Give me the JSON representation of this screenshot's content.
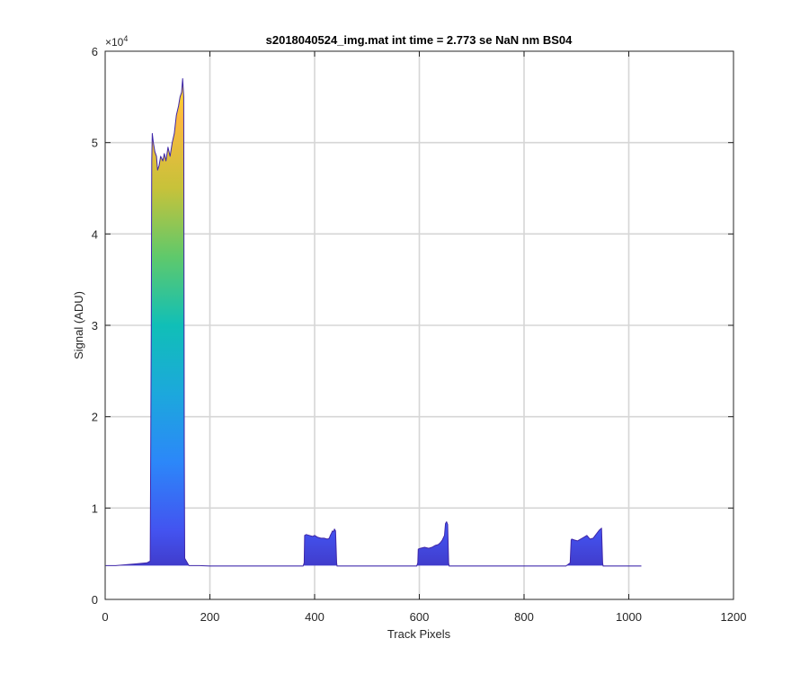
{
  "chart_data": {
    "type": "area",
    "title": "s2018040524_img.mat int time = 2.773 se  NaN nm BS04",
    "xlabel": "Track Pixels",
    "ylabel": "Signal (ADU)",
    "exponent_label": "×10",
    "exponent_power": "4",
    "xlim": [
      0,
      1200
    ],
    "ylim": [
      0,
      60000
    ],
    "grid": true,
    "x_ticks": [
      0,
      200,
      400,
      600,
      800,
      1000,
      1200
    ],
    "y_ticks": [
      0,
      10000,
      20000,
      30000,
      40000,
      50000,
      60000
    ],
    "x_tick_labels": [
      "0",
      "200",
      "400",
      "600",
      "800",
      "1000",
      "1200"
    ],
    "y_tick_labels": [
      "0",
      "1",
      "2",
      "3",
      "4",
      "5",
      "6"
    ],
    "colormap": [
      "#3e26a8",
      "#4353f0",
      "#2c87f9",
      "#1ca8dc",
      "#10bfb7",
      "#5fc96b",
      "#c7c23a",
      "#fbb83e",
      "#f9fb15"
    ],
    "baseline": 3700,
    "series": [
      {
        "x": [
          1,
          20,
          40,
          60,
          80,
          86,
          88,
          89,
          90,
          92,
          95,
          98,
          100,
          103,
          106,
          110,
          113,
          116,
          120,
          124,
          128,
          132,
          136,
          140,
          143,
          146,
          148,
          150,
          151,
          152,
          160,
          180,
          200,
          240,
          280,
          320,
          360,
          378,
          380,
          381,
          384,
          390,
          396,
          400,
          406,
          412,
          418,
          424,
          428,
          430,
          432,
          434,
          436,
          438,
          440,
          442,
          443,
          446,
          460,
          500,
          540,
          580,
          595,
          597,
          598,
          602,
          610,
          618,
          624,
          630,
          636,
          640,
          644,
          648,
          650,
          652,
          654,
          656,
          657,
          660,
          680,
          720,
          760,
          800,
          840,
          880,
          888,
          890,
          891,
          896,
          902,
          908,
          914,
          920,
          926,
          932,
          936,
          940,
          944,
          948,
          950,
          951,
          955,
          980,
          1000,
          1020,
          1024
        ],
        "values": [
          3700,
          3700,
          3800,
          3900,
          4000,
          4200,
          30000,
          48000,
          51000,
          50000,
          49000,
          48500,
          47000,
          47500,
          48500,
          48000,
          48800,
          48000,
          49500,
          48500,
          50000,
          51000,
          53000,
          54000,
          55000,
          55500,
          57000,
          55000,
          17500,
          4500,
          3700,
          3700,
          3650,
          3650,
          3650,
          3650,
          3650,
          3650,
          4000,
          7000,
          7100,
          7000,
          6900,
          7000,
          6800,
          6700,
          6700,
          6600,
          6700,
          7000,
          7200,
          7500,
          7400,
          7700,
          7500,
          4000,
          3650,
          3650,
          3650,
          3650,
          3650,
          3650,
          3650,
          4000,
          5500,
          5600,
          5700,
          5600,
          5700,
          5900,
          6000,
          6200,
          6500,
          7000,
          8300,
          8500,
          8200,
          4000,
          3650,
          3650,
          3650,
          3650,
          3650,
          3650,
          3650,
          3650,
          4000,
          6500,
          6600,
          6500,
          6400,
          6600,
          6800,
          7000,
          6600,
          6700,
          7000,
          7300,
          7600,
          7800,
          4000,
          3650,
          3650,
          3650,
          3650,
          3650,
          3650
        ]
      }
    ]
  }
}
